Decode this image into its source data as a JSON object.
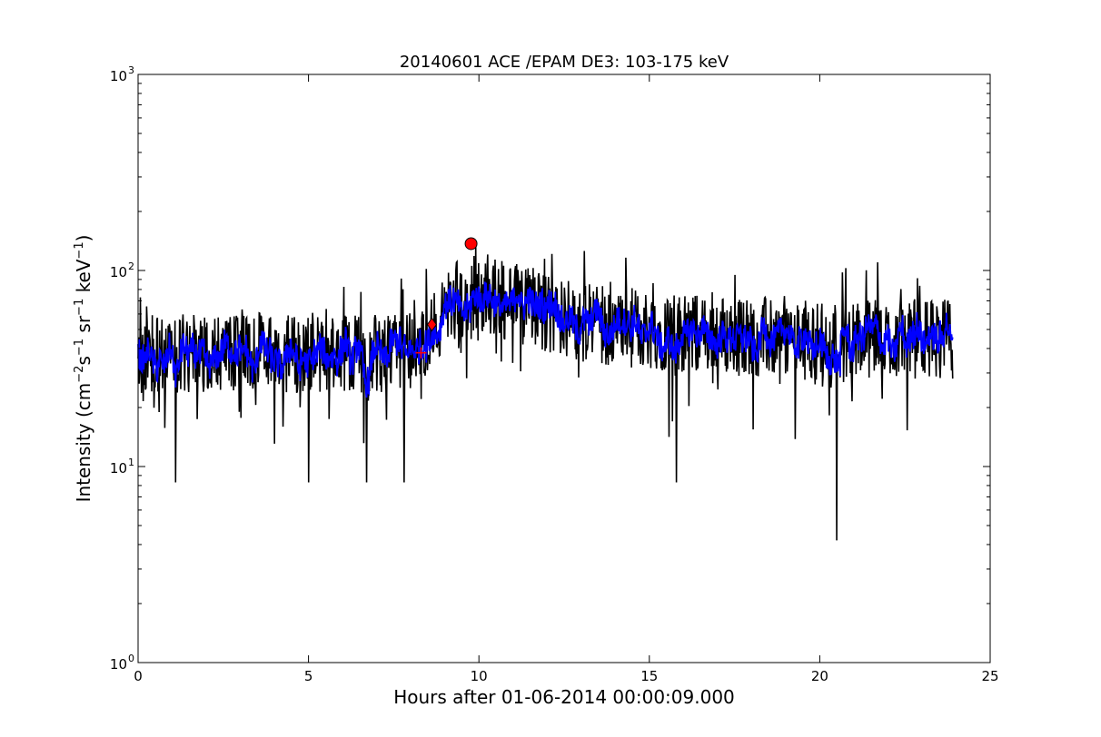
{
  "chart_data": {
    "type": "line",
    "title": "20140601 ACE /EPAM DE3: 103-175 keV",
    "xlabel": "Hours after 01-06-2014 00:00:09.000",
    "ylabel": {
      "prefix": "Intensity (cm",
      "exp1": "−2",
      "mid1": "s",
      "exp2": "−1",
      "mid2": " sr",
      "exp3": "−1",
      "mid3": " keV",
      "exp4": "−1",
      "suffix": ")"
    },
    "xlim": [
      0,
      25
    ],
    "ylim": [
      1,
      1000
    ],
    "y_scale": "log",
    "grid": false,
    "x_ticks": [
      {
        "value": 0,
        "label": "0"
      },
      {
        "value": 5,
        "label": "5"
      },
      {
        "value": 10,
        "label": "10"
      },
      {
        "value": 15,
        "label": "15"
      },
      {
        "value": 20,
        "label": "20"
      },
      {
        "value": 25,
        "label": "25"
      }
    ],
    "y_ticks": [
      {
        "value": 1,
        "base": "10",
        "exp": "0"
      },
      {
        "value": 10,
        "base": "10",
        "exp": "1"
      },
      {
        "value": 100,
        "base": "10",
        "exp": "2"
      },
      {
        "value": 1000,
        "base": "10",
        "exp": "3"
      }
    ],
    "series": [
      {
        "role": "raw",
        "color": "#000000",
        "x_start": 0.0,
        "x_end": 23.9,
        "baseline_profile": [
          [
            0.0,
            38
          ],
          [
            8.3,
            38
          ],
          [
            8.8,
            55
          ],
          [
            9.3,
            70
          ],
          [
            10.0,
            75
          ],
          [
            11.0,
            68
          ],
          [
            12.0,
            62
          ],
          [
            13.0,
            55
          ],
          [
            14.0,
            52
          ],
          [
            16.0,
            48
          ],
          [
            18.0,
            46
          ],
          [
            20.0,
            44
          ],
          [
            22.0,
            45
          ],
          [
            23.9,
            45
          ]
        ],
        "dips": [
          {
            "x": 1.1,
            "y": 8.3
          },
          {
            "x": 5.0,
            "y": 8.3
          },
          {
            "x": 6.7,
            "y": 8.3
          },
          {
            "x": 7.8,
            "y": 8.3
          },
          {
            "x": 15.8,
            "y": 8.3
          },
          {
            "x": 20.5,
            "y": 4.2
          }
        ],
        "peaks": [
          {
            "x": 9.9,
            "y": 135
          },
          {
            "x": 21.7,
            "y": 110
          }
        ]
      },
      {
        "role": "smoothed",
        "color": "#0000ff",
        "x_start": 0.0,
        "x_end": 23.9
      }
    ],
    "markers": [
      {
        "x": 9.77,
        "y": 137,
        "shape": "circle",
        "color": "#ff0000"
      },
      {
        "x": 8.62,
        "y": 53,
        "shape": "diamond",
        "color": "#ff0000"
      },
      {
        "x": 8.3,
        "y": 38,
        "shape": "plus",
        "color": "#ff0000"
      }
    ]
  }
}
